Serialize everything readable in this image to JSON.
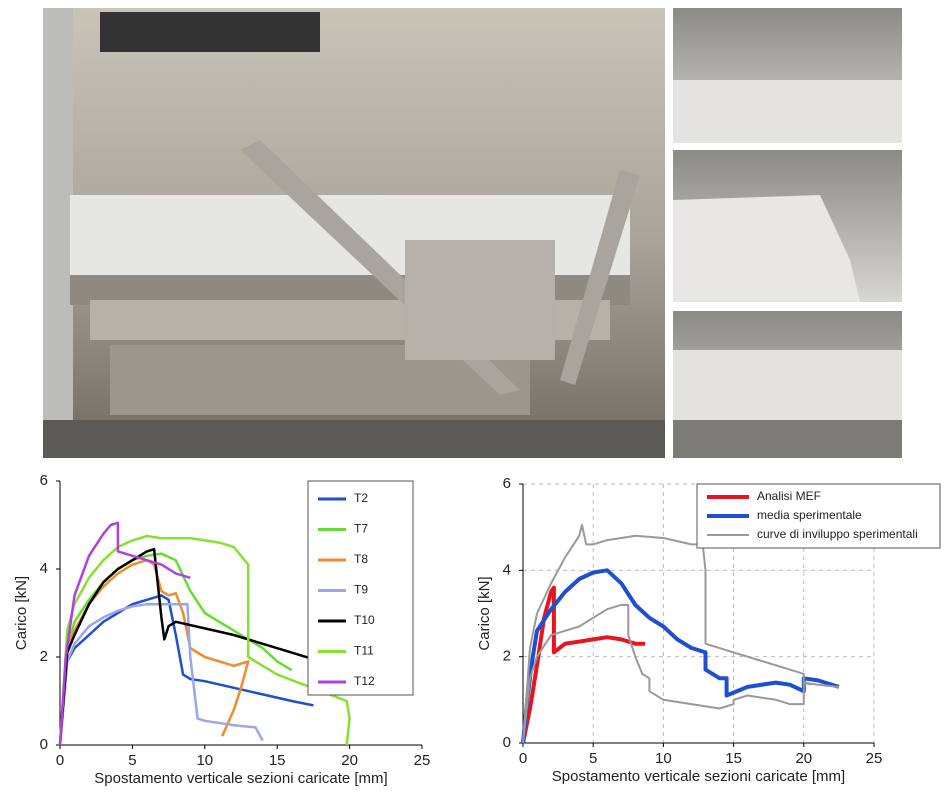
{
  "chart_data": [
    {
      "type": "line",
      "xlabel": "Spostamento verticale sezioni caricate [mm]",
      "ylabel": "Carico [kN]",
      "xlim": [
        0,
        25
      ],
      "ylim": [
        0,
        6
      ],
      "xticks": [
        0,
        5,
        10,
        15,
        20,
        25
      ],
      "yticks": [
        0,
        2,
        4,
        6
      ],
      "grid": false,
      "legend": "upper right",
      "series": [
        {
          "name": "T2",
          "color": "#1f4fd1",
          "x": [
            0,
            0.5,
            1,
            2,
            3,
            4,
            5,
            6,
            7,
            7.5,
            8,
            8.5,
            9,
            10,
            12,
            14,
            16,
            17.5
          ],
          "values": [
            0,
            1.9,
            2.2,
            2.5,
            2.8,
            3.0,
            3.2,
            3.3,
            3.4,
            3.3,
            2.5,
            1.6,
            1.5,
            1.45,
            1.3,
            1.15,
            1.0,
            0.9
          ]
        },
        {
          "name": "T7",
          "color": "#66dd33",
          "x": [
            0,
            0.5,
            1,
            2,
            3,
            4,
            5,
            6,
            7,
            8,
            9,
            10,
            11,
            12,
            13,
            14,
            15,
            16
          ],
          "values": [
            0,
            2.2,
            2.8,
            3.3,
            3.7,
            4.0,
            4.2,
            4.3,
            4.35,
            4.2,
            3.5,
            3.0,
            2.8,
            2.6,
            2.4,
            2.2,
            1.9,
            1.7
          ]
        },
        {
          "name": "T8",
          "color": "#f08c30",
          "x": [
            0,
            0.5,
            1,
            2,
            3,
            4,
            5,
            6,
            6.5,
            7,
            7.5,
            8,
            8.5,
            9,
            10,
            11,
            12,
            13,
            12.5,
            12,
            11.2
          ],
          "values": [
            0,
            2.2,
            2.6,
            3.2,
            3.6,
            3.9,
            4.1,
            4.2,
            4.1,
            3.5,
            3.4,
            3.45,
            3.0,
            2.2,
            2.0,
            1.9,
            1.8,
            1.9,
            1.3,
            0.8,
            0.2
          ]
        },
        {
          "name": "T9",
          "color": "#9aa6e8",
          "x": [
            0,
            0.5,
            1,
            2,
            3,
            4,
            5,
            6,
            7,
            8,
            8.8,
            9,
            9.5,
            10,
            12,
            13.5,
            14
          ],
          "values": [
            0,
            1.9,
            2.3,
            2.7,
            2.9,
            3.05,
            3.15,
            3.2,
            3.2,
            3.2,
            3.2,
            2.0,
            0.6,
            0.55,
            0.45,
            0.4,
            0.1
          ]
        },
        {
          "name": "T10",
          "color": "#000000",
          "x": [
            0,
            0.5,
            1,
            2,
            3,
            4,
            5,
            6,
            6.5,
            7,
            7.2,
            7.5,
            8,
            10,
            12,
            14,
            16,
            18,
            20,
            21,
            22.3
          ],
          "values": [
            0,
            2.1,
            2.5,
            3.2,
            3.7,
            4.0,
            4.2,
            4.4,
            4.45,
            2.9,
            2.4,
            2.7,
            2.8,
            2.65,
            2.5,
            2.3,
            2.1,
            1.9,
            1.6,
            1.45,
            1.3
          ]
        },
        {
          "name": "T11",
          "color": "#88e030",
          "x": [
            0,
            0.5,
            1,
            2,
            3,
            4,
            5,
            6,
            7,
            8,
            9,
            10,
            11,
            12,
            13,
            13,
            14,
            15,
            17,
            19,
            19.8,
            20,
            19.8
          ],
          "values": [
            0,
            2.6,
            3.2,
            3.8,
            4.2,
            4.5,
            4.65,
            4.75,
            4.7,
            4.7,
            4.7,
            4.65,
            4.6,
            4.5,
            4.1,
            2.0,
            1.8,
            1.6,
            1.35,
            1.1,
            1.0,
            0.6,
            0
          ]
        },
        {
          "name": "T12",
          "color": "#b040e0",
          "x": [
            0,
            0.4,
            1,
            2,
            3,
            3.5,
            4,
            4,
            5,
            6,
            7,
            8,
            9
          ],
          "values": [
            0,
            2.0,
            3.4,
            4.3,
            4.8,
            5.0,
            5.05,
            4.4,
            4.3,
            4.2,
            4.1,
            3.9,
            3.8
          ]
        }
      ]
    },
    {
      "type": "line",
      "xlabel": "Spostamento verticale sezioni caricate [mm]",
      "ylabel": "Carico [kN]",
      "xlim": [
        0,
        25
      ],
      "ylim": [
        0,
        6
      ],
      "xticks": [
        0,
        5,
        10,
        15,
        20,
        25
      ],
      "yticks": [
        0,
        2,
        4,
        6
      ],
      "grid": true,
      "legend": "upper right",
      "series": [
        {
          "name": "Analisi MEF",
          "color": "#e8141e",
          "x": [
            0,
            0.5,
            1,
            1.5,
            2,
            2.2,
            2.2,
            3,
            4,
            5,
            6,
            7,
            8,
            8.7
          ],
          "values": [
            0,
            0.8,
            1.8,
            2.9,
            3.5,
            3.6,
            2.1,
            2.3,
            2.35,
            2.4,
            2.45,
            2.4,
            2.3,
            2.3
          ]
        },
        {
          "name": "media sperimentale",
          "color": "#1f4fd1",
          "x": [
            0,
            0.3,
            0.7,
            1,
            2,
            3,
            4,
            5,
            6,
            7,
            8,
            9,
            10,
            11,
            12,
            13,
            13,
            14,
            14.5,
            14.5,
            16,
            18,
            19,
            20,
            20,
            21,
            22.5
          ],
          "values": [
            0,
            1.0,
            2.0,
            2.6,
            3.1,
            3.5,
            3.8,
            3.95,
            4.0,
            3.7,
            3.2,
            2.9,
            2.7,
            2.4,
            2.2,
            2.1,
            1.7,
            1.5,
            1.5,
            1.1,
            1.3,
            1.4,
            1.35,
            1.2,
            1.5,
            1.45,
            1.3
          ]
        },
        {
          "name": "curve di inviluppo sperimentali",
          "color": "#999999",
          "x": [
            0,
            0.5,
            1,
            2,
            3,
            4,
            4.2,
            4.5,
            5,
            6,
            7,
            8,
            10,
            12,
            12.8,
            13,
            13,
            15,
            17,
            19,
            20,
            20,
            21,
            22.5,
            null,
            0,
            0.5,
            1,
            2,
            3,
            4,
            5,
            6,
            7,
            7.5,
            7.5,
            8,
            8.5,
            9,
            9,
            10,
            12,
            14,
            15,
            15,
            16,
            18,
            19,
            20,
            20,
            20.5
          ],
          "values": [
            0,
            2.2,
            3.0,
            3.7,
            4.3,
            4.8,
            5.05,
            4.6,
            4.6,
            4.7,
            4.75,
            4.8,
            4.75,
            4.6,
            4.6,
            4.0,
            2.3,
            2.1,
            1.9,
            1.7,
            1.6,
            1.4,
            1.35,
            1.3,
            null,
            0,
            1.5,
            2.0,
            2.5,
            2.6,
            2.7,
            2.9,
            3.1,
            3.2,
            3.2,
            2.5,
            2.0,
            1.6,
            1.5,
            1.2,
            1.0,
            0.9,
            0.8,
            0.9,
            1.0,
            1.1,
            1.0,
            0.9,
            0.9,
            1.4,
            1.35
          ]
        }
      ]
    }
  ]
}
